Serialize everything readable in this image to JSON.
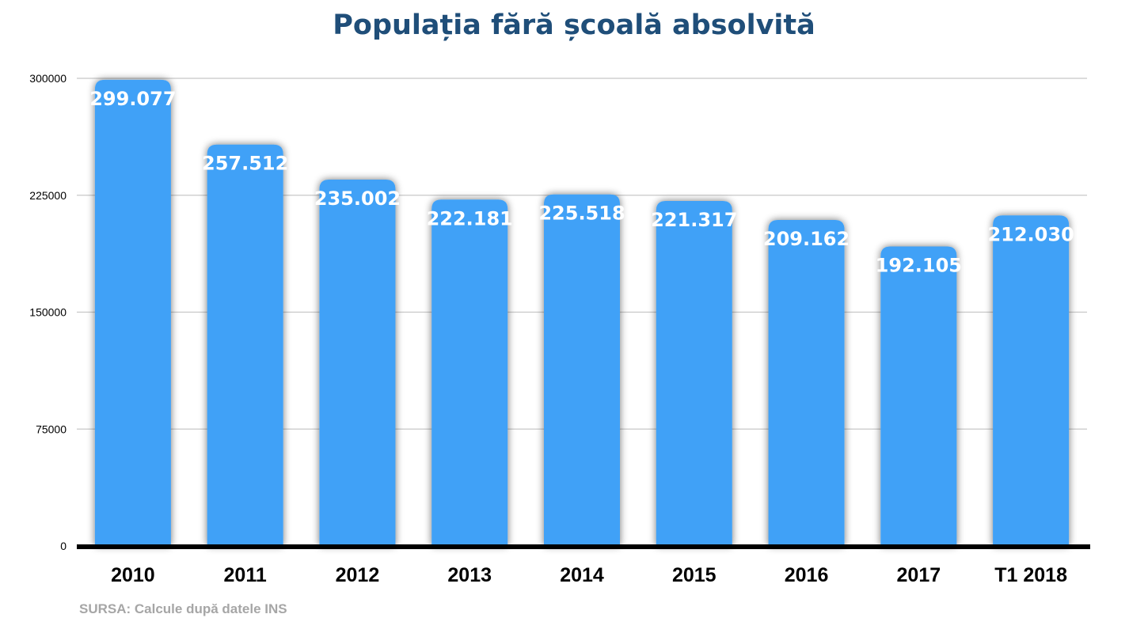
{
  "title": "Populația fără școală absolvită",
  "source": "SURSA: Calcule după datele INS",
  "colors": {
    "bar": "#3fa1f7",
    "title": "#1f4e79",
    "grid": "#c8c8c8",
    "baseline": "#000000"
  },
  "chart_data": {
    "type": "bar",
    "title": "Populația fără școală absolvită",
    "xlabel": "",
    "ylabel": "",
    "categories": [
      "2010",
      "2011",
      "2012",
      "2013",
      "2014",
      "2015",
      "2016",
      "2017",
      "T1 2018"
    ],
    "values": [
      299077,
      257512,
      235002,
      222181,
      225518,
      221317,
      209162,
      192105,
      212030
    ],
    "data_labels": [
      "299.077",
      "257.512",
      "235.002",
      "222.181",
      "225.518",
      "221.317",
      "209.162",
      "192.105",
      "212.030"
    ],
    "yticks": [
      0,
      75000,
      150000,
      225000,
      300000
    ],
    "ytick_labels": [
      "0",
      "75000",
      "150000",
      "225000",
      "300000"
    ],
    "ylim": [
      0,
      300000
    ],
    "grid": true,
    "legend": "none"
  }
}
